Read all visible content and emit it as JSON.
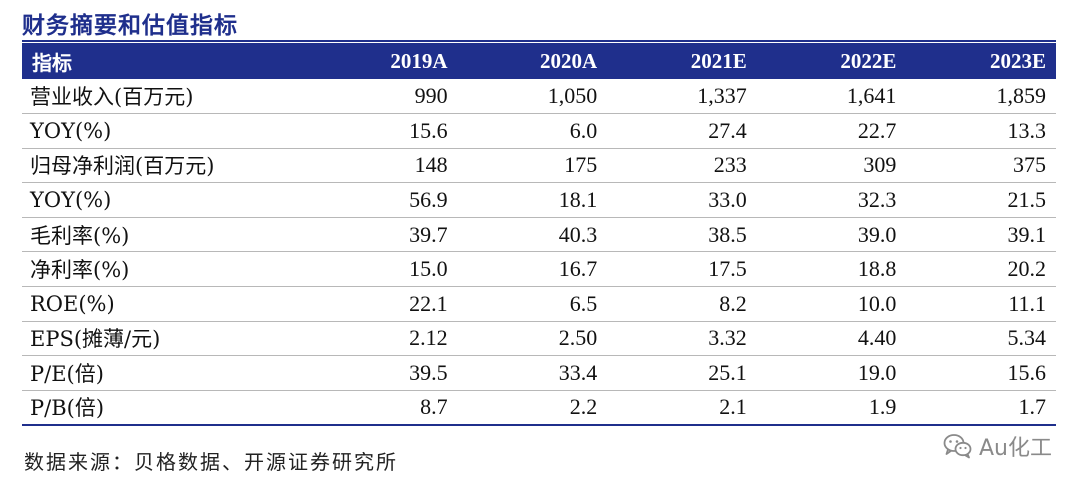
{
  "title": "财务摘要和估值指标",
  "table": {
    "headers": [
      "指标",
      "2019A",
      "2020A",
      "2021E",
      "2022E",
      "2023E"
    ],
    "rows": [
      {
        "label": "营业收入(百万元)",
        "values": [
          "990",
          "1,050",
          "1,337",
          "1,641",
          "1,859"
        ]
      },
      {
        "label": "YOY(%)",
        "values": [
          "15.6",
          "6.0",
          "27.4",
          "22.7",
          "13.3"
        ]
      },
      {
        "label": "归母净利润(百万元)",
        "values": [
          "148",
          "175",
          "233",
          "309",
          "375"
        ]
      },
      {
        "label": "YOY(%)",
        "values": [
          "56.9",
          "18.1",
          "33.0",
          "32.3",
          "21.5"
        ]
      },
      {
        "label": "毛利率(%)",
        "values": [
          "39.7",
          "40.3",
          "38.5",
          "39.0",
          "39.1"
        ]
      },
      {
        "label": "净利率(%)",
        "values": [
          "15.0",
          "16.7",
          "17.5",
          "18.8",
          "20.2"
        ]
      },
      {
        "label": "ROE(%)",
        "values": [
          "22.1",
          "6.5",
          "8.2",
          "10.0",
          "11.1"
        ]
      },
      {
        "label": "EPS(摊薄/元)",
        "values": [
          "2.12",
          "2.50",
          "3.32",
          "4.40",
          "5.34"
        ]
      },
      {
        "label": "P/E(倍)",
        "values": [
          "39.5",
          "33.4",
          "25.1",
          "19.0",
          "15.6"
        ]
      },
      {
        "label": "P/B(倍)",
        "values": [
          "8.7",
          "2.2",
          "2.1",
          "1.9",
          "1.7"
        ]
      }
    ]
  },
  "source": "数据来源：贝格数据、开源证券研究所",
  "watermark": {
    "text": "Au化工",
    "icon": "wechat-icon"
  },
  "colors": {
    "accent": "#1f2f8c",
    "rule": "#b8b8b8"
  }
}
